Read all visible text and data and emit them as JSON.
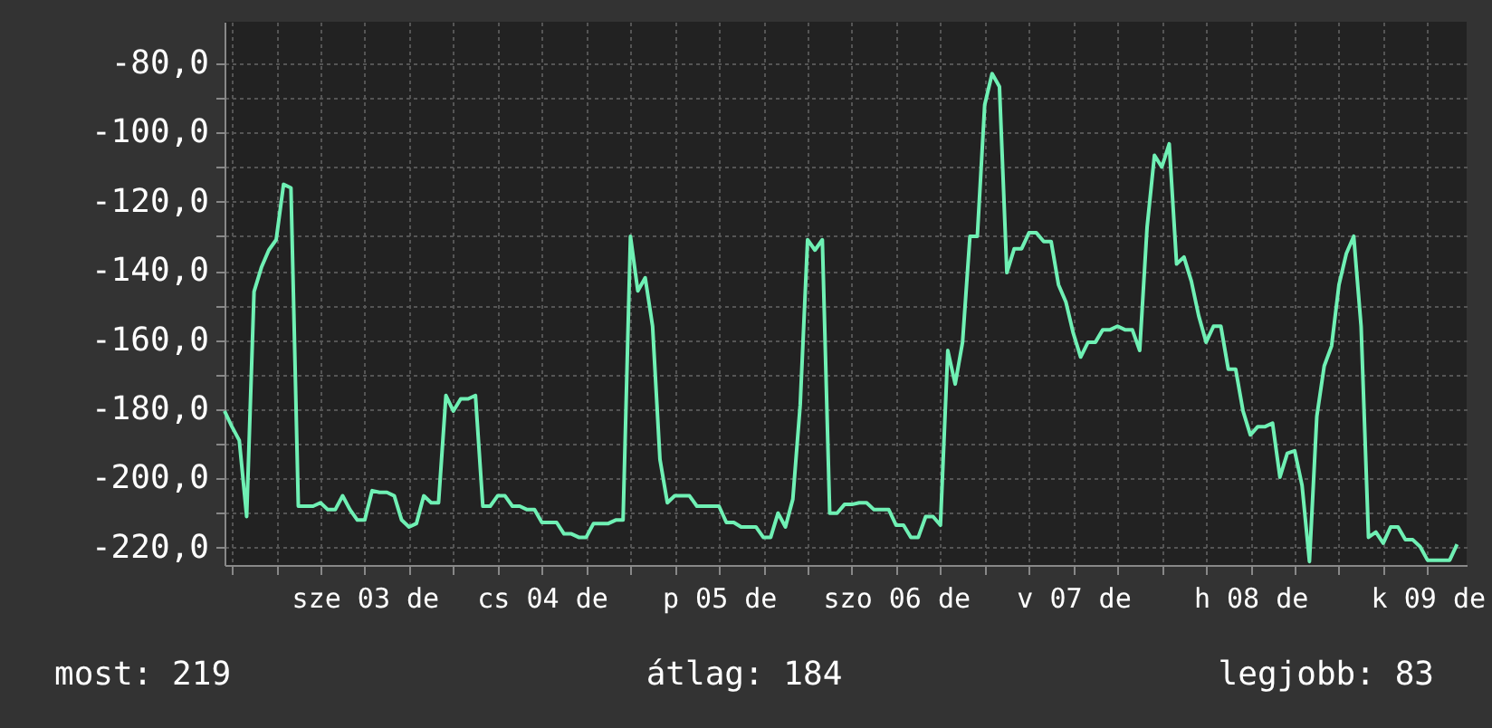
{
  "chart_data": {
    "type": "line",
    "grid": true,
    "marker": "none",
    "line_style": "solid",
    "categories": [
      null,
      null,
      null,
      null,
      null,
      null,
      null,
      null,
      null,
      null,
      null,
      null,
      null,
      null,
      null,
      null,
      null,
      null,
      null,
      "sze 03 de",
      null,
      null,
      null,
      null,
      null,
      null,
      null,
      null,
      null,
      null,
      null,
      null,
      null,
      null,
      null,
      null,
      null,
      null,
      null,
      null,
      null,
      null,
      null,
      "cs 04 de",
      null,
      null,
      null,
      null,
      null,
      null,
      null,
      null,
      null,
      null,
      null,
      null,
      null,
      null,
      null,
      null,
      null,
      null,
      null,
      null,
      null,
      null,
      null,
      "p 05 de",
      null,
      null,
      null,
      null,
      null,
      null,
      null,
      null,
      null,
      null,
      null,
      null,
      null,
      null,
      null,
      null,
      null,
      null,
      null,
      null,
      null,
      null,
      null,
      "szo 06 de",
      null,
      null,
      null,
      null,
      null,
      null,
      null,
      null,
      null,
      null,
      null,
      null,
      null,
      null,
      null,
      null,
      null,
      null,
      null,
      null,
      null,
      null,
      null,
      "v 07 de",
      null,
      null,
      null,
      null,
      null,
      null,
      null,
      null,
      null,
      null,
      null,
      null,
      null,
      null,
      null,
      null,
      null,
      null,
      null,
      null,
      null,
      null,
      null,
      "h 08 de",
      null,
      null,
      null,
      null,
      null,
      null,
      null,
      null,
      null,
      null,
      null,
      null,
      null,
      null,
      null,
      null,
      null,
      null,
      null,
      null,
      null,
      null,
      null,
      "k 09 de",
      null,
      null,
      null,
      null
    ],
    "ylim": [
      -225,
      -68
    ],
    "yticks": [
      {
        "value": -80,
        "label": "-80,0"
      },
      {
        "value": -90,
        "label": null
      },
      {
        "value": -100,
        "label": "-100,0"
      },
      {
        "value": -110,
        "label": null
      },
      {
        "value": -120,
        "label": "-120,0"
      },
      {
        "value": -130,
        "label": null
      },
      {
        "value": -140,
        "label": "-140,0"
      },
      {
        "value": -150,
        "label": null
      },
      {
        "value": -160,
        "label": "-160,0"
      },
      {
        "value": -170,
        "label": null
      },
      {
        "value": -180,
        "label": "-180,0"
      },
      {
        "value": -190,
        "label": null
      },
      {
        "value": -200,
        "label": "-200,0"
      },
      {
        "value": -210,
        "label": null
      },
      {
        "value": -220,
        "label": "-220,0"
      }
    ],
    "annotations": [
      "most: 219",
      "átlag: 184",
      "legjobb: 83"
    ],
    "series": [
      {
        "color": "#6ff0b4",
        "values": [
          -180.5,
          -185,
          -189,
          -211,
          -146,
          -139,
          -134,
          -131,
          -115,
          -116,
          -208,
          -208,
          -208,
          -207,
          -209,
          -209,
          -205,
          -209,
          -212,
          -212,
          -203.5,
          -204,
          -204,
          -205,
          -212,
          -214,
          -213,
          -205,
          -207,
          -207,
          -176,
          -180.5,
          -177,
          -177,
          -176,
          -208,
          -208,
          -205,
          -205,
          -208,
          -208,
          -209,
          -209,
          -212.7,
          -212.7,
          -212.7,
          -216,
          -216,
          -217,
          -217,
          -213,
          -213,
          -213,
          -212,
          -212,
          -130,
          -145.8,
          -142,
          -156,
          -194.5,
          -207,
          -205,
          -205,
          -205,
          -208,
          -208,
          -208,
          -208,
          -212.7,
          -212.7,
          -214,
          -214,
          -214,
          -217,
          -217,
          -210,
          -214,
          -206,
          -178.8,
          -131,
          -134,
          -131,
          -210,
          -210,
          -207.5,
          -207.5,
          -207,
          -207,
          -209,
          -209,
          -209,
          -213.5,
          -213.5,
          -217,
          -217,
          -211,
          -211,
          -213.5,
          -163,
          -172.7,
          -160.6,
          -130,
          -130,
          -92,
          -83,
          -86.8,
          -140.5,
          -133.6,
          -133.6,
          -129,
          -129,
          -131.5,
          -131.5,
          -144,
          -149,
          -158,
          -164.9,
          -160.6,
          -160.6,
          -157,
          -157,
          -156,
          -157,
          -157,
          -163,
          -127.4,
          -106.6,
          -110,
          -103.3,
          -138,
          -136,
          -143,
          -153,
          -160.6,
          -156,
          -156,
          -168.4,
          -168.4,
          -180.5,
          -187.4,
          -185,
          -185,
          -184,
          -199.6,
          -192.7,
          -192,
          -202,
          -224,
          -182,
          -167.5,
          -161.7,
          -144,
          -135,
          -130,
          -156,
          -217,
          -215.5,
          -218.7,
          -214,
          -214,
          -217.7,
          -217.7,
          -219.7,
          -223.6,
          -223.6,
          -223.6,
          -223.6,
          -219
        ]
      }
    ]
  }
}
